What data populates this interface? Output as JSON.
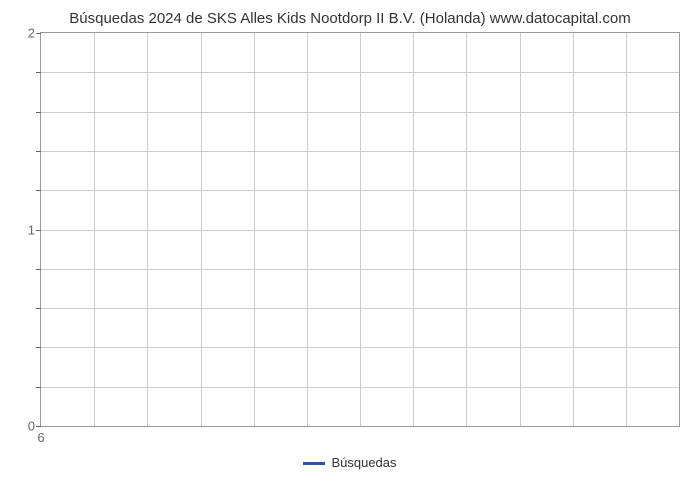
{
  "chart": {
    "type": "line",
    "title": "Búsquedas 2024 de SKS Alles Kids Nootdorp II B.V. (Holanda) www.datocapital.com",
    "title_fontsize": 15,
    "title_color": "#333333",
    "background_color": "#ffffff",
    "grid_color": "#cccccc",
    "border_color": "#999999",
    "axis_tick_color": "#666666",
    "axis_label_color": "#666666",
    "axis_label_fontsize": 13,
    "ylim": [
      0,
      2
    ],
    "y_major_ticks": [
      0,
      1,
      2
    ],
    "y_minor_count_between": 4,
    "x_ticks": [
      "6"
    ],
    "x_grid_count": 12,
    "series": [
      {
        "name": "Búsquedas",
        "color": "#2b5797",
        "data": []
      }
    ],
    "legend": {
      "label": "Búsquedas",
      "line_color": "#2b5797",
      "text_color": "#333333",
      "fontsize": 13
    }
  }
}
